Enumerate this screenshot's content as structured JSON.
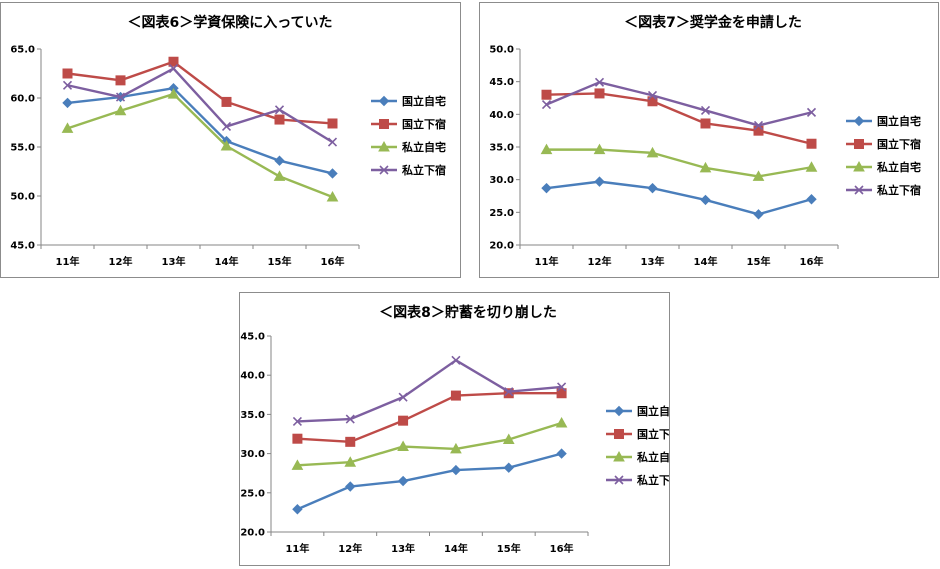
{
  "legend_series_labels": [
    "国立自宅",
    "国立下宿",
    "私立自宅",
    "私立下宿"
  ],
  "series_colors": {
    "国立自宅": "#4a7ebb",
    "国立下宿": "#be4b48",
    "私立自宅": "#98b954",
    "私立下宿": "#7d5fa0"
  },
  "marker_shapes": {
    "国立自宅": "diamond",
    "国立下宿": "square",
    "私立自宅": "triangle",
    "私立下宿": "x"
  },
  "chart_data": [
    {
      "type": "line",
      "title": "＜図表6＞学資保険に入っていた",
      "categories": [
        "11年",
        "12年",
        "13年",
        "14年",
        "15年",
        "16年"
      ],
      "ylim": [
        45.0,
        65.0
      ],
      "yticks": [
        45.0,
        50.0,
        55.0,
        60.0,
        65.0
      ],
      "ytick_labels": [
        "45.0",
        "50.0",
        "55.0",
        "60.0",
        "65.0"
      ],
      "legend_position": "right",
      "grid": false,
      "series": [
        {
          "name": "国立自宅",
          "values": [
            59.5,
            60.1,
            61.0,
            55.6,
            53.6,
            52.3
          ]
        },
        {
          "name": "国立下宿",
          "values": [
            62.5,
            61.8,
            63.7,
            59.6,
            57.8,
            57.4
          ]
        },
        {
          "name": "私立自宅",
          "values": [
            56.9,
            58.7,
            60.4,
            55.1,
            52.0,
            49.9
          ]
        },
        {
          "name": "私立下宿",
          "values": [
            61.3,
            60.1,
            63.0,
            57.1,
            58.8,
            55.5
          ]
        }
      ]
    },
    {
      "type": "line",
      "title": "＜図表7＞奨学金を申請した",
      "categories": [
        "11年",
        "12年",
        "13年",
        "14年",
        "15年",
        "16年"
      ],
      "ylim": [
        20.0,
        50.0
      ],
      "yticks": [
        20.0,
        25.0,
        30.0,
        35.0,
        40.0,
        45.0,
        50.0
      ],
      "ytick_labels": [
        "20.0",
        "25.0",
        "30.0",
        "35.0",
        "40.0",
        "45.0",
        "50.0"
      ],
      "legend_position": "right",
      "grid": false,
      "series": [
        {
          "name": "国立自宅",
          "values": [
            28.7,
            29.7,
            28.7,
            26.9,
            24.7,
            27.0
          ]
        },
        {
          "name": "国立下宿",
          "values": [
            43.0,
            43.2,
            42.0,
            38.6,
            37.5,
            35.5
          ]
        },
        {
          "name": "私立自宅",
          "values": [
            34.6,
            34.6,
            34.1,
            31.8,
            30.5,
            31.9
          ]
        },
        {
          "name": "私立下宿",
          "values": [
            41.5,
            44.9,
            42.9,
            40.6,
            38.3,
            40.3
          ]
        }
      ]
    },
    {
      "type": "line",
      "title": "＜図表8＞貯蓄を切り崩した",
      "categories": [
        "11年",
        "12年",
        "13年",
        "14年",
        "15年",
        "16年"
      ],
      "ylim": [
        20.0,
        45.0
      ],
      "yticks": [
        20.0,
        25.0,
        30.0,
        35.0,
        40.0,
        45.0
      ],
      "ytick_labels": [
        "20.0",
        "25.0",
        "30.0",
        "35.0",
        "40.0",
        "45.0"
      ],
      "legend_position": "right",
      "grid": false,
      "series": [
        {
          "name": "国立自宅",
          "values": [
            22.9,
            25.8,
            26.5,
            27.9,
            28.2,
            30.0
          ]
        },
        {
          "name": "国立下宿",
          "values": [
            31.9,
            31.5,
            34.2,
            37.4,
            37.7,
            37.7
          ]
        },
        {
          "name": "私立自宅",
          "values": [
            28.5,
            28.9,
            30.9,
            30.6,
            31.8,
            33.9
          ]
        },
        {
          "name": "私立下宿",
          "values": [
            34.1,
            34.4,
            37.2,
            41.9,
            37.9,
            38.5
          ]
        }
      ]
    }
  ]
}
